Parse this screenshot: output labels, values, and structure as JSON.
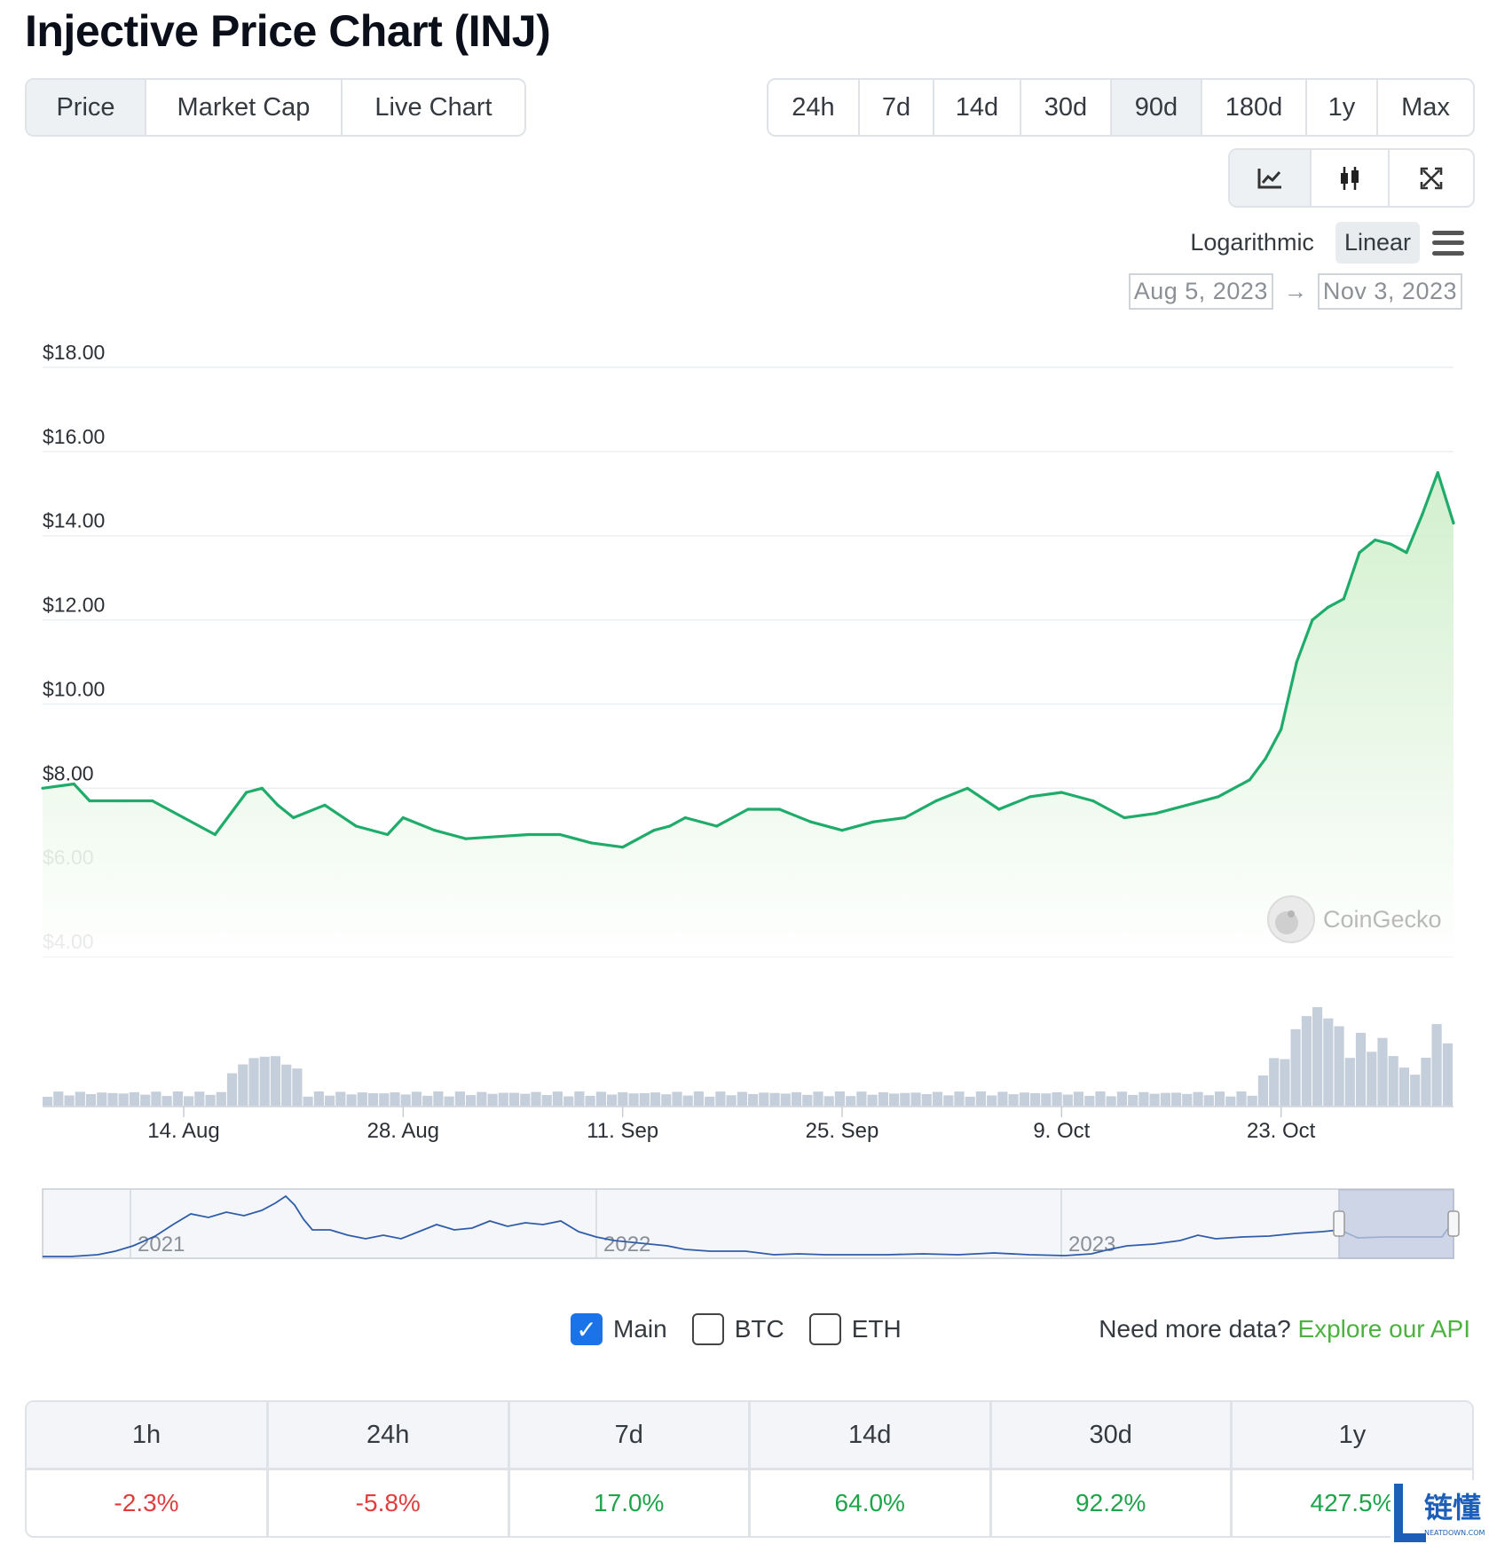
{
  "title": "Injective Price Chart (INJ)",
  "view_tabs": [
    "Price",
    "Market Cap",
    "Live Chart"
  ],
  "range_tabs": [
    "24h",
    "7d",
    "14d",
    "30d",
    "90d",
    "180d",
    "1y",
    "Max"
  ],
  "active_view": "Price",
  "active_range": "90d",
  "chart_tools": [
    "line-chart-icon",
    "candlestick-icon",
    "expand-icon"
  ],
  "scale": {
    "log_label": "Logarithmic",
    "linear_label": "Linear",
    "active": "Linear"
  },
  "date_range": {
    "from": "Aug 5, 2023",
    "to": "Nov 3, 2023",
    "arrow": "→"
  },
  "watermark": "CoinGecko",
  "colors": {
    "line": "#1fac6a",
    "area_top": "#d8f1d6",
    "volume": "#c5cfdb",
    "navigator_line": "#2f5da9",
    "navigator_window": "#c2cbe0"
  },
  "chart_data": {
    "type": "line",
    "y_ticks": [
      "$18.00",
      "$16.00",
      "$14.00",
      "$12.00",
      "$10.00",
      "$8.00",
      "$6.00",
      "$4.00"
    ],
    "ylim": [
      4,
      18
    ],
    "x_ticks": [
      "14. Aug",
      "28. Aug",
      "11. Sep",
      "25. Sep",
      "9. Oct",
      "23. Oct"
    ],
    "x_tick_dates": [
      "2023-08-14",
      "2023-08-28",
      "2023-09-11",
      "2023-09-25",
      "2023-10-09",
      "2023-10-23"
    ],
    "x_start": "2023-08-05",
    "x_end": "2023-11-03",
    "x": [
      "2023-08-05",
      "2023-08-07",
      "2023-08-08",
      "2023-08-10",
      "2023-08-12",
      "2023-08-14",
      "2023-08-16",
      "2023-08-18",
      "2023-08-19",
      "2023-08-20",
      "2023-08-21",
      "2023-08-23",
      "2023-08-25",
      "2023-08-27",
      "2023-08-28",
      "2023-08-30",
      "2023-09-01",
      "2023-09-03",
      "2023-09-05",
      "2023-09-07",
      "2023-09-09",
      "2023-09-11",
      "2023-09-13",
      "2023-09-14",
      "2023-09-15",
      "2023-09-17",
      "2023-09-19",
      "2023-09-21",
      "2023-09-23",
      "2023-09-25",
      "2023-09-27",
      "2023-09-29",
      "2023-10-01",
      "2023-10-03",
      "2023-10-05",
      "2023-10-07",
      "2023-10-09",
      "2023-10-11",
      "2023-10-13",
      "2023-10-15",
      "2023-10-17",
      "2023-10-19",
      "2023-10-21",
      "2023-10-22",
      "2023-10-23",
      "2023-10-24",
      "2023-10-25",
      "2023-10-26",
      "2023-10-27",
      "2023-10-28",
      "2023-10-29",
      "2023-10-30",
      "2023-10-31",
      "2023-11-01",
      "2023-11-02",
      "2023-11-03"
    ],
    "y": [
      8.0,
      8.1,
      7.7,
      7.7,
      7.7,
      7.3,
      6.9,
      7.9,
      8.0,
      7.6,
      7.3,
      7.6,
      7.1,
      6.9,
      7.3,
      7.0,
      6.8,
      6.85,
      6.9,
      6.9,
      6.7,
      6.6,
      7.0,
      7.1,
      7.3,
      7.1,
      7.5,
      7.5,
      7.2,
      7.0,
      7.2,
      7.3,
      7.7,
      8.0,
      7.5,
      7.8,
      7.9,
      7.7,
      7.3,
      7.4,
      7.6,
      7.8,
      8.2,
      8.7,
      9.4,
      11.0,
      12.0,
      12.3,
      12.5,
      13.6,
      13.9,
      13.8,
      13.6,
      14.5,
      15.5,
      14.3
    ],
    "volume_note": "relative volume bars under the price",
    "navigator": {
      "labels": [
        "2021",
        "2022",
        "2023"
      ]
    }
  },
  "series_toggles": [
    {
      "label": "Main",
      "checked": true
    },
    {
      "label": "BTC",
      "checked": false
    },
    {
      "label": "ETH",
      "checked": false
    }
  ],
  "api_prompt": "Need more data?",
  "api_link": "Explore our API",
  "performance": {
    "headers": [
      "1h",
      "24h",
      "7d",
      "14d",
      "30d",
      "1y"
    ],
    "values": [
      "-2.3%",
      "-5.8%",
      "17.0%",
      "64.0%",
      "92.2%",
      "427.5%"
    ]
  },
  "brand": {
    "name": "链懂",
    "sub": "NEATDOWN.COM"
  }
}
